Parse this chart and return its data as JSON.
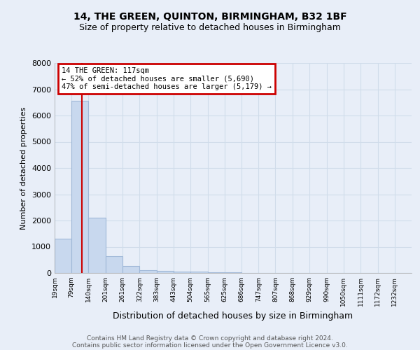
{
  "title": "14, THE GREEN, QUINTON, BIRMINGHAM, B32 1BF",
  "subtitle": "Size of property relative to detached houses in Birmingham",
  "xlabel": "Distribution of detached houses by size in Birmingham",
  "ylabel": "Number of detached properties",
  "footnote1": "Contains HM Land Registry data © Crown copyright and database right 2024.",
  "footnote2": "Contains public sector information licensed under the Open Government Licence v3.0.",
  "bar_edges": [
    19,
    79,
    140,
    201,
    261,
    322,
    383,
    443,
    504,
    565,
    625,
    686,
    747,
    807,
    868,
    929,
    990,
    1050,
    1111,
    1172,
    1232
  ],
  "bar_heights": [
    1300,
    6550,
    2100,
    650,
    270,
    120,
    80,
    60,
    50,
    40,
    35,
    5,
    5,
    5,
    5,
    5,
    5,
    5,
    5,
    5,
    5
  ],
  "bar_color": "#c8d8ee",
  "bar_border_color": "#a0b8d8",
  "grid_color": "#d0dcea",
  "property_size": 117,
  "red_line_color": "#cc0000",
  "annotation_text": "14 THE GREEN: 117sqm\n← 52% of detached houses are smaller (5,690)\n47% of semi-detached houses are larger (5,179) →",
  "annotation_box_color": "#cc0000",
  "ylim": [
    0,
    8000
  ],
  "yticks": [
    0,
    1000,
    2000,
    3000,
    4000,
    5000,
    6000,
    7000,
    8000
  ],
  "background_color": "#e8eef8",
  "axes_background": "#e8eef8",
  "title_fontsize": 10,
  "subtitle_fontsize": 9
}
